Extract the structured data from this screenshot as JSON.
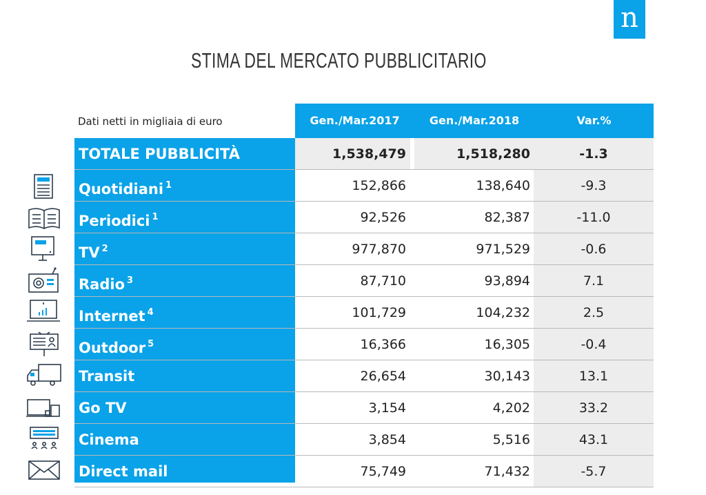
{
  "logo": {
    "letter": "n"
  },
  "title": "STIMA DEL MERCATO PUBBLICITARIO",
  "subtitle": "Dati netti in migliaia di euro",
  "columns": [
    "Gen./Mar.2017",
    "Gen./Mar.2018",
    "Var.%"
  ],
  "colors": {
    "accent": "#0aa2e8",
    "shade": "#ededed"
  },
  "rows": [
    {
      "label": "TOTALE PUBBLICITÀ",
      "note": "",
      "v2017": "1,538,479",
      "v2018": "1,518,280",
      "var": "-1.3",
      "icon": ""
    },
    {
      "label": "Quotidiani",
      "note": "1",
      "v2017": "152,866",
      "v2018": "138,640",
      "var": "-9.3",
      "icon": "newspaper-icon"
    },
    {
      "label": "Periodici",
      "note": "1",
      "v2017": "92,526",
      "v2018": "82,387",
      "var": "-11.0",
      "icon": "magazine-icon"
    },
    {
      "label": "TV",
      "note": "2",
      "v2017": "977,870",
      "v2018": "971,529",
      "var": "-0.6",
      "icon": "tv-icon"
    },
    {
      "label": "Radio",
      "note": "3",
      "v2017": "87,710",
      "v2018": "93,894",
      "var": "7.1",
      "icon": "radio-icon"
    },
    {
      "label": "Internet",
      "note": "4",
      "v2017": "101,729",
      "v2018": "104,232",
      "var": "2.5",
      "icon": "laptop-icon"
    },
    {
      "label": "Outdoor",
      "note": "5",
      "v2017": "16,366",
      "v2018": "16,305",
      "var": "-0.4",
      "icon": "billboard-icon"
    },
    {
      "label": "Transit",
      "note": "",
      "v2017": "26,654",
      "v2018": "30,143",
      "var": "13.1",
      "icon": "truck-icon"
    },
    {
      "label": "Go TV",
      "note": "",
      "v2017": "3,154",
      "v2018": "4,202",
      "var": "33.2",
      "icon": "devices-icon"
    },
    {
      "label": "Cinema",
      "note": "",
      "v2017": "3,854",
      "v2018": "5,516",
      "var": "43.1",
      "icon": "cinema-icon"
    },
    {
      "label": "Direct mail",
      "note": "",
      "v2017": "75,749",
      "v2018": "71,432",
      "var": "-5.7",
      "icon": "envelope-icon"
    }
  ]
}
